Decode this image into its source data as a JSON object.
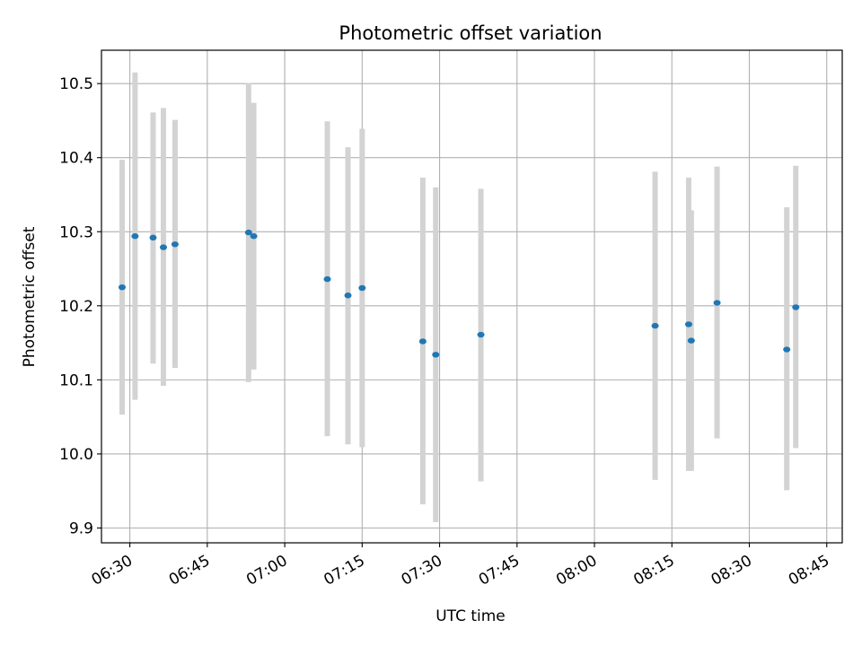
{
  "chart_data": {
    "type": "scatter",
    "title": "Photometric offset variation",
    "xlabel": "UTC time",
    "ylabel": "Photometric offset",
    "x_ticks": [
      "06:30",
      "06:45",
      "07:00",
      "07:15",
      "07:30",
      "07:45",
      "08:00",
      "08:15",
      "08:30",
      "08:45"
    ],
    "y_ticks": [
      "9.9",
      "10.0",
      "10.1",
      "10.2",
      "10.3",
      "10.4",
      "10.5"
    ],
    "xlim": [
      "06:24:30",
      "08:48:00"
    ],
    "ylim": [
      9.88,
      10.545
    ],
    "grid": true,
    "errorbar_color": "#d3d3d3",
    "point_color": "#1f77b4",
    "points": [
      {
        "x": "06:28:30",
        "y": 10.225,
        "ylow": 10.053,
        "yhigh": 10.397
      },
      {
        "x": "06:31:00",
        "y": 10.294,
        "ylow": 10.073,
        "yhigh": 10.515
      },
      {
        "x": "06:34:30",
        "y": 10.292,
        "ylow": 10.122,
        "yhigh": 10.461
      },
      {
        "x": "06:36:30",
        "y": 10.279,
        "ylow": 10.092,
        "yhigh": 10.467
      },
      {
        "x": "06:38:45",
        "y": 10.283,
        "ylow": 10.116,
        "yhigh": 10.451
      },
      {
        "x": "06:53:00",
        "y": 10.299,
        "ylow": 10.097,
        "yhigh": 10.501
      },
      {
        "x": "06:54:00",
        "y": 10.294,
        "ylow": 10.114,
        "yhigh": 10.474
      },
      {
        "x": "07:08:15",
        "y": 10.236,
        "ylow": 10.024,
        "yhigh": 10.449
      },
      {
        "x": "07:12:15",
        "y": 10.214,
        "ylow": 10.013,
        "yhigh": 10.414
      },
      {
        "x": "07:15:00",
        "y": 10.224,
        "ylow": 10.009,
        "yhigh": 10.439
      },
      {
        "x": "07:26:45",
        "y": 10.152,
        "ylow": 9.932,
        "yhigh": 10.373
      },
      {
        "x": "07:29:15",
        "y": 10.134,
        "ylow": 9.908,
        "yhigh": 10.36
      },
      {
        "x": "07:38:00",
        "y": 10.161,
        "ylow": 9.963,
        "yhigh": 10.358
      },
      {
        "x": "08:11:45",
        "y": 10.173,
        "ylow": 9.965,
        "yhigh": 10.381
      },
      {
        "x": "08:18:15",
        "y": 10.175,
        "ylow": 9.977,
        "yhigh": 10.373
      },
      {
        "x": "08:18:45",
        "y": 10.153,
        "ylow": 9.977,
        "yhigh": 10.329
      },
      {
        "x": "08:23:45",
        "y": 10.204,
        "ylow": 10.021,
        "yhigh": 10.388
      },
      {
        "x": "08:37:15",
        "y": 10.141,
        "ylow": 9.951,
        "yhigh": 10.333
      },
      {
        "x": "08:39:00",
        "y": 10.198,
        "ylow": 10.008,
        "yhigh": 10.389
      }
    ]
  }
}
